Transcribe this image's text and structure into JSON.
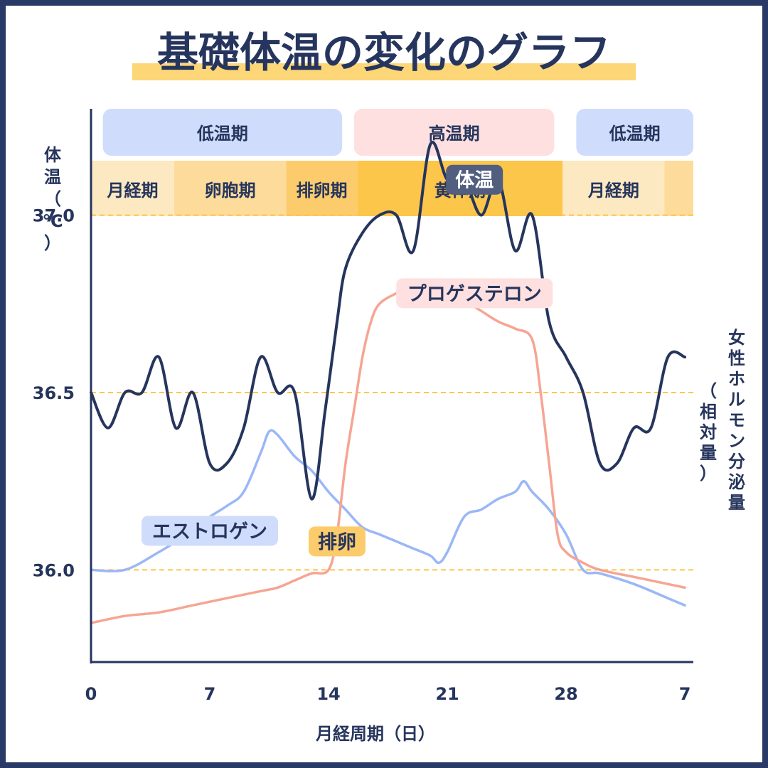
{
  "title": "基礎体温の変化のグラフ",
  "chart_data": {
    "type": "line",
    "x_unit_label": "月経周期（日）",
    "y_left_label": "体温（℃）",
    "y_right_label": "女性ホルモン分泌量（相対量）",
    "x_ticks": [
      "0",
      "7",
      "14",
      "21",
      "28",
      "7"
    ],
    "y_ticks": [
      "36.0",
      "36.5",
      "37.0"
    ],
    "ylim": [
      35.74,
      37.3
    ],
    "xlim": [
      0,
      35.5
    ],
    "grid": "dashed horizontal at 36.0, 36.5, 37.0",
    "temp_phases": [
      {
        "label": "低温期",
        "start": 0.7,
        "end": 14.8,
        "color": "#cfdcfc"
      },
      {
        "label": "高温期",
        "start": 15.5,
        "end": 27.3,
        "color": "#fde0df"
      },
      {
        "label": "低温期",
        "start": 28.6,
        "end": 35.5,
        "color": "#cfdcfc"
      }
    ],
    "cycle_phases": [
      {
        "label": "月経期",
        "start": 0,
        "end": 4.9,
        "color": "#fde9c1"
      },
      {
        "label": "卵胞期",
        "start": 4.9,
        "end": 11.5,
        "color": "#fddc9b"
      },
      {
        "label": "排卵期",
        "start": 11.5,
        "end": 15.7,
        "color": "#fccc6c"
      },
      {
        "label": "黄体期",
        "start": 15.7,
        "end": 27.8,
        "color": "#fcc64b"
      },
      {
        "label": "月経期",
        "start": 27.8,
        "end": 33.8,
        "color": "#fde9c1"
      },
      {
        "label": "",
        "start": 33.8,
        "end": 35.5,
        "color": "#fddc9b"
      }
    ],
    "series": [
      {
        "name": "体温",
        "color": "#26355d",
        "x": [
          0,
          1,
          2,
          3,
          4,
          5,
          6,
          7,
          8,
          9,
          10,
          11,
          12,
          13,
          13.8,
          14.5,
          15,
          16,
          17,
          18,
          19,
          20,
          21,
          22,
          23,
          24,
          25,
          26,
          27,
          28,
          29,
          30,
          31,
          32,
          33,
          34,
          35
        ],
        "values": [
          36.5,
          36.4,
          36.5,
          36.5,
          36.6,
          36.4,
          36.5,
          36.3,
          36.3,
          36.4,
          36.6,
          36.5,
          36.5,
          36.2,
          36.45,
          36.7,
          36.85,
          36.95,
          37.0,
          37.0,
          36.9,
          37.2,
          37.1,
          37.1,
          37.0,
          37.1,
          36.9,
          37.0,
          36.7,
          36.6,
          36.5,
          36.3,
          36.3,
          36.4,
          36.4,
          36.6,
          36.6
        ]
      },
      {
        "name": "エストロゲン",
        "color": "#9bb7f6",
        "x": [
          0,
          2,
          4,
          5,
          6,
          8,
          9,
          10,
          10.5,
          11,
          12,
          13,
          14,
          15,
          16,
          17,
          18,
          19,
          20,
          20.5,
          21,
          22,
          23,
          24,
          25,
          25.5,
          26,
          27,
          28,
          29,
          30,
          32,
          34,
          35
        ],
        "values": [
          36.0,
          36.0,
          36.05,
          36.08,
          36.12,
          36.18,
          36.22,
          36.33,
          36.39,
          36.38,
          36.32,
          36.28,
          36.22,
          36.17,
          36.12,
          36.1,
          36.08,
          36.06,
          36.04,
          36.02,
          36.05,
          36.15,
          36.17,
          36.2,
          36.22,
          36.25,
          36.22,
          36.17,
          36.1,
          36.0,
          35.99,
          35.96,
          35.92,
          35.9
        ]
      },
      {
        "name": "プロゲステロン",
        "color": "#f6a593",
        "x": [
          0,
          2,
          4,
          6,
          8,
          10,
          11,
          12,
          13,
          14,
          14.5,
          15,
          15.5,
          16,
          16.5,
          17,
          18,
          19,
          20,
          21,
          22,
          23,
          24,
          25,
          26,
          26.5,
          27,
          27.5,
          28,
          29,
          30,
          32,
          34,
          35
        ],
        "values": [
          35.85,
          35.87,
          35.88,
          35.9,
          35.92,
          35.94,
          35.95,
          35.97,
          35.99,
          36.0,
          36.1,
          36.3,
          36.45,
          36.6,
          36.7,
          36.75,
          36.78,
          36.8,
          36.8,
          36.8,
          36.76,
          36.73,
          36.7,
          36.68,
          36.65,
          36.5,
          36.3,
          36.1,
          36.05,
          36.02,
          36.0,
          35.98,
          35.96,
          35.95
        ]
      }
    ],
    "annotations": [
      {
        "label": "体温",
        "bg": "#525e80",
        "color": "#ffffff",
        "cx": 22.6,
        "cy": 37.1
      },
      {
        "label": "プロゲステロン",
        "bg": "#fde0df",
        "color": "#26355d",
        "cx": 22.6,
        "cy": 36.78
      },
      {
        "label": "エストロゲン",
        "bg": "#cfdcfc",
        "color": "#26355d",
        "cx": 7,
        "cy": 36.11
      },
      {
        "label": "排卵",
        "bg": "#fccc6c",
        "color": "#26355d",
        "cx": 14.5,
        "cy": 36.08
      }
    ]
  }
}
